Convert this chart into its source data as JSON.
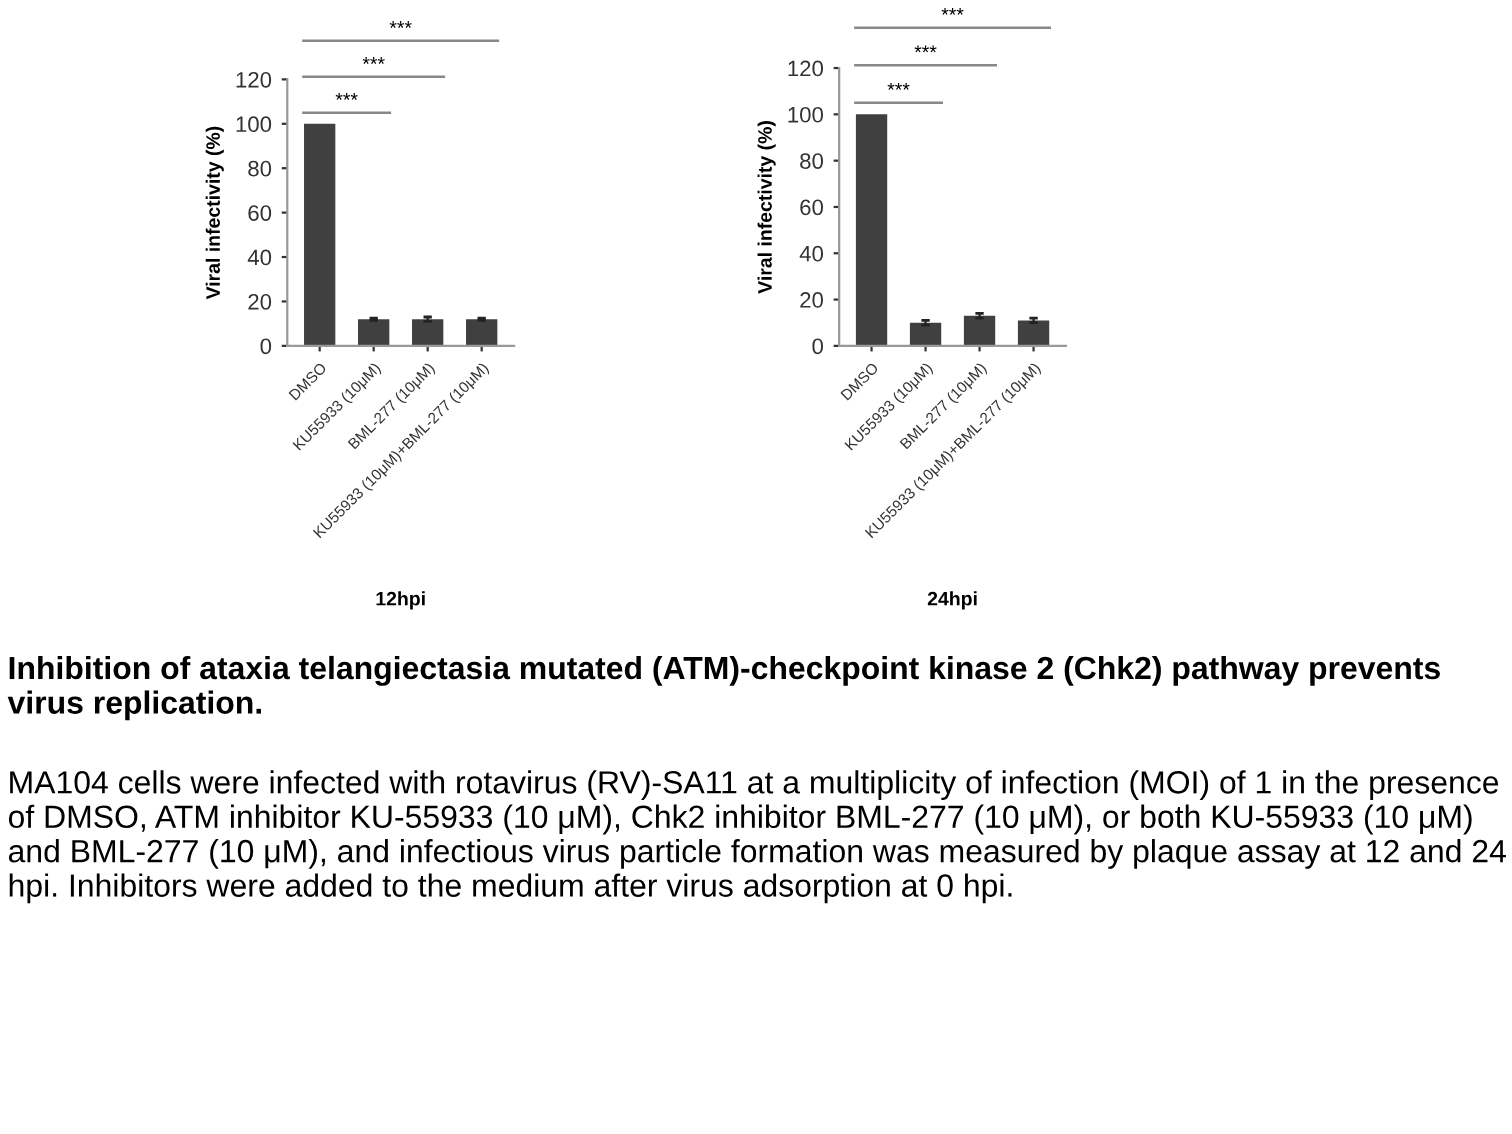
{
  "chart_data": [
    {
      "type": "bar",
      "ylabel": "Viral infectivity (%)",
      "xlabel": "12hpi",
      "categories": [
        "DMSO",
        "KU55933 (10μM)",
        "BML-277 (10μM)",
        "KU55933 (10μM)+BML-277 (10μM)"
      ],
      "values": [
        100,
        12,
        12,
        12
      ],
      "errors": [
        null,
        0.5,
        1,
        0.5
      ],
      "color": "#404040",
      "ylim": [
        0,
        120
      ],
      "yticks": [
        0,
        20,
        40,
        60,
        80,
        100,
        120
      ],
      "grid": false,
      "annotations": [
        "***",
        "***",
        "***"
      ]
    },
    {
      "type": "bar",
      "ylabel": "Viral infectivity (%)",
      "xlabel": "24hpi",
      "categories": [
        "DMSO",
        "KU55933 (10μM)",
        "BML-277 (10μM)",
        "KU55933 (10μM)+BML-277 (10μM)"
      ],
      "values": [
        100,
        10,
        13,
        11
      ],
      "errors": [
        null,
        1,
        1,
        1
      ],
      "color": "#404040",
      "ylim": [
        0,
        120
      ],
      "yticks": [
        0,
        20,
        40,
        60,
        80,
        100,
        120
      ],
      "grid": false,
      "annotations": [
        "***",
        "***",
        "***"
      ]
    },
    {
      "type": "other",
      "title": "Inhibition of ataxia telangiectasia mutated (ATM)-checkpoint kinase 2 (Chk2) pathway prevents virus replication.",
      "annotations": [
        "MA104 cells were infected with rotavirus (RV)-SA11 at a multiplicity of infection (MOI) of 1 in the presence of DMSO, ATM inhibitor KU-55933 (10 μM), Chk2 inhibitor BML-277 (10 μM), or both KU-55933 (10 μM) and BML-277 (10 μM), and infectious virus particle formation was measured by plaque assay at 12 and 24 hpi. Inhibitors were added to the medium after virus adsorption at 0 hpi."
      ]
    }
  ]
}
